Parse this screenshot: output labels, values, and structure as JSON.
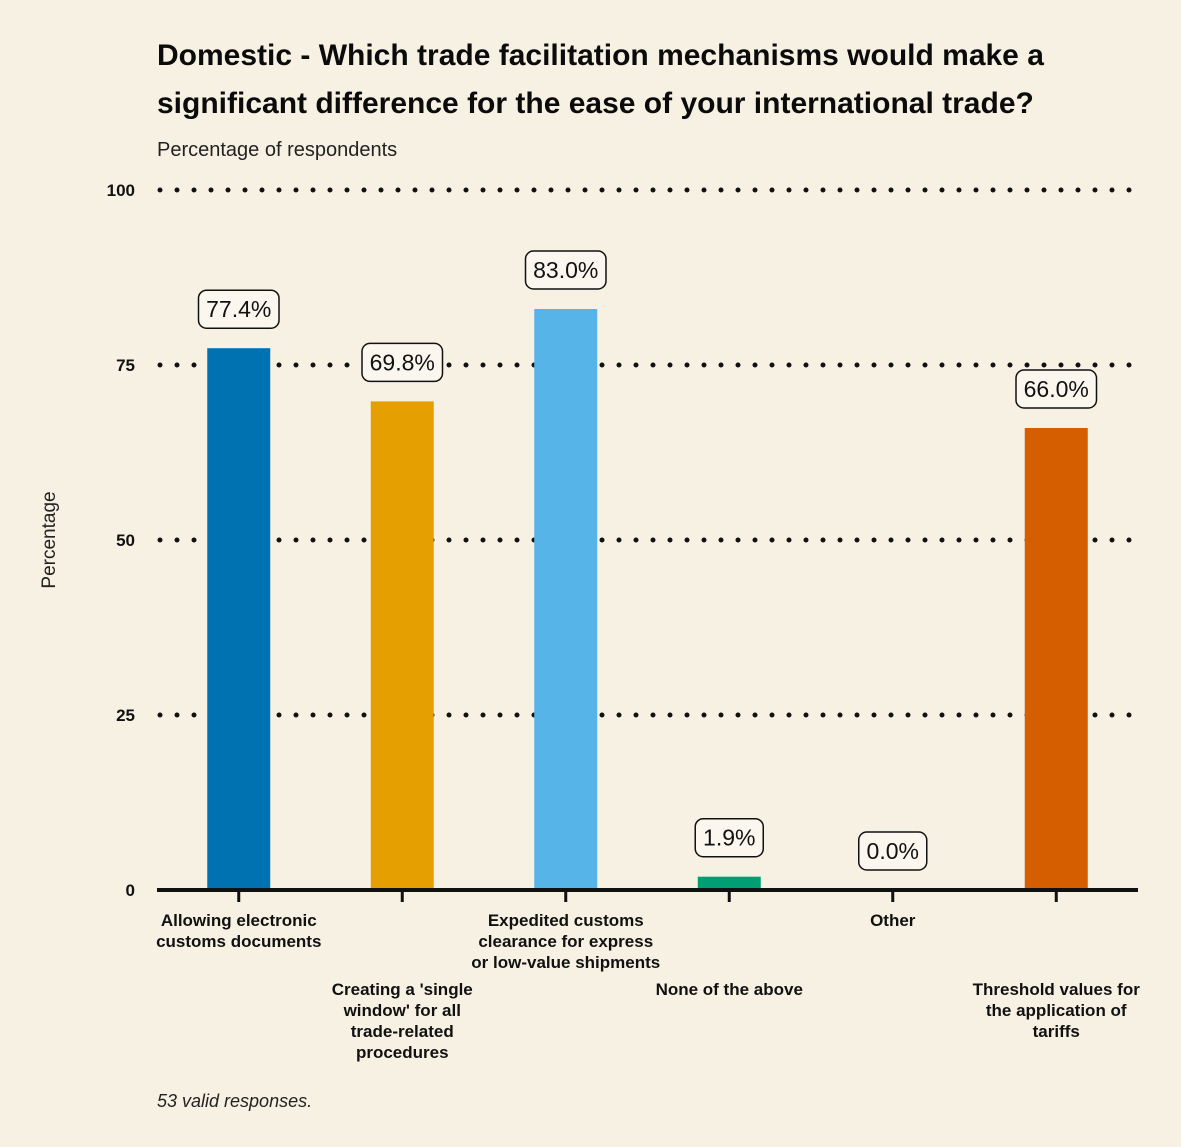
{
  "chart_data": {
    "type": "bar",
    "title": "Domestic - Which trade facilitation mechanisms would make a significant difference for the ease of your international trade?",
    "subtitle": "Percentage of respondents",
    "xlabel": "",
    "ylabel": "Percentage",
    "caption": "53 valid responses.",
    "categories": [
      "Allowing electronic customs documents",
      "Creating a 'single window' for all trade-related procedures",
      "Expedited customs clearance for express or low-value shipments",
      "None of the above",
      "Other",
      "Threshold values for the application of tariffs"
    ],
    "category_label_lines": [
      [
        "Allowing electronic",
        "customs documents"
      ],
      [
        "Creating a 'single",
        "window' for all",
        "trade-related",
        "procedures"
      ],
      [
        "Expedited customs",
        "clearance for express",
        "or low-value shipments"
      ],
      [
        "None of the above"
      ],
      [
        "Other"
      ],
      [
        "Threshold values for",
        "the application of",
        "tariffs"
      ]
    ],
    "values": [
      77.4,
      69.8,
      83.0,
      1.9,
      0.0,
      66.0
    ],
    "data_labels": [
      "77.4%",
      "69.8%",
      "83.0%",
      "1.9%",
      "0.0%",
      "66.0%"
    ],
    "colors": [
      "#0072b2",
      "#e69f00",
      "#56b4e9",
      "#009e73",
      "#f0e442",
      "#d55e00"
    ],
    "ylim": [
      0,
      100
    ],
    "yticks": [
      0,
      25,
      50,
      75,
      100
    ],
    "grid": true,
    "grid_style": "dotted"
  }
}
